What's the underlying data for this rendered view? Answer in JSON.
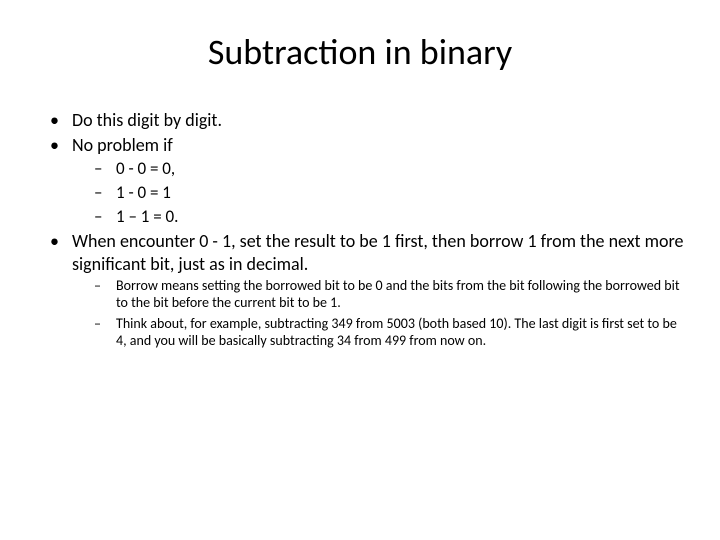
{
  "slide": {
    "title": "Subtraction in binary",
    "bullets": [
      {
        "text": "Do this digit by digit."
      },
      {
        "text": "No problem if",
        "sub": [
          "0 - 0 = 0,",
          "1 - 0 = 1",
          "1 – 1 = 0."
        ]
      },
      {
        "text": "When encounter 0 - 1,  set the result to be 1 first, then borrow 1 from the next more significant bit, just as in decimal.",
        "subSmall": [
          "Borrow means setting the borrowed bit to be 0 and the bits from the bit following the borrowed bit to the bit before the current bit to be 1.",
          "Think about, for example, subtracting 349 from 5003 (both based 10). The last digit is first set to be 4, and you will be basically subtracting 34 from 499 from now on."
        ]
      }
    ]
  },
  "style": {
    "background_color": "#ffffff",
    "text_color": "#000000",
    "title_fontsize": 36,
    "body_fontsize": 18,
    "sub_fontsize": 17,
    "subsmall_fontsize": 14,
    "font_family": "Calibri"
  }
}
